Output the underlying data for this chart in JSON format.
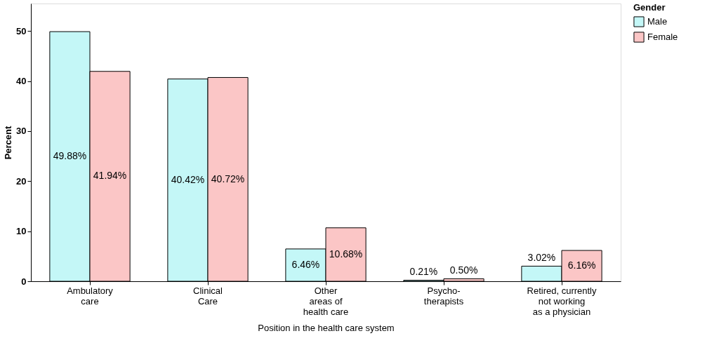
{
  "chart_data": {
    "type": "bar",
    "xlabel": "Position in the health care system",
    "ylabel": "Percent",
    "legend_title": "Gender",
    "categories": [
      "Ambulatory\ncare",
      "Clinical\nCare",
      "Other\nareas of\nhealth care",
      "Psycho-\ntherapists",
      "Retired, currently\nnot working\nas a physician"
    ],
    "series": [
      {
        "name": "Male",
        "color": "#c4f7f7",
        "values": [
          49.88,
          40.42,
          6.46,
          0.21,
          3.02
        ],
        "value_labels": [
          "49.88%",
          "40.42%",
          "6.46%",
          "0.21%",
          "3.02%"
        ]
      },
      {
        "name": "Female",
        "color": "#fbc6c6",
        "values": [
          41.94,
          40.72,
          10.68,
          0.5,
          6.16
        ],
        "value_labels": [
          "41.94%",
          "40.72%",
          "10.68%",
          "0.50%",
          "6.16%"
        ]
      }
    ],
    "ylim": [
      0,
      55.5
    ],
    "yticks": [
      0,
      10,
      20,
      30,
      40,
      50
    ],
    "grid": false,
    "legend": "top right"
  }
}
